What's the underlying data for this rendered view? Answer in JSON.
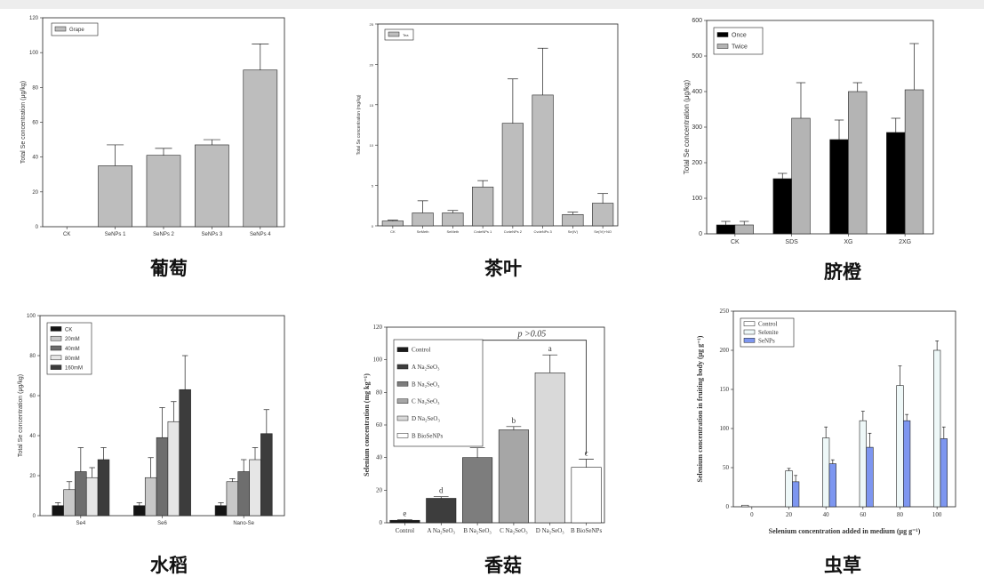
{
  "captions": [
    "葡萄",
    "茶叶",
    "脐橙",
    "水稻",
    "香菇",
    "虫草"
  ],
  "chart_data": [
    {
      "type": "bar",
      "caption": "葡萄",
      "ylabel": "Total Se concentration (μg/kg)",
      "ylim": [
        0,
        120
      ],
      "yticks": [
        "0",
        "20",
        "40",
        "60",
        "80",
        "100",
        "120"
      ],
      "categories": [
        "CK",
        "SeNPs 1",
        "SeNPs 2",
        "SeNPs 3",
        "SeNPs 4"
      ],
      "series": [
        {
          "name": "Grape",
          "color": "#bdbdbd",
          "values": [
            0,
            35,
            41,
            47,
            90
          ],
          "errors": [
            0,
            12,
            4,
            3,
            15
          ]
        }
      ],
      "legend": "top-left"
    },
    {
      "type": "bar",
      "caption": "茶叶",
      "ylabel": "Total Se concentration (mg/kg)",
      "ylim": [
        0,
        25
      ],
      "yticks": [
        "0",
        "5",
        "10",
        "15",
        "20",
        "25"
      ],
      "categories": [
        "CK",
        "SeMeth",
        "SeMeth",
        "CvdeNPs 1",
        "CvdeNPs 2",
        "CvdeNPs 3",
        "Se(IV)",
        "Se(IV)+NO"
      ],
      "series": [
        {
          "name": "Tea",
          "color": "#bdbdbd",
          "values": [
            0.6,
            1.6,
            1.6,
            4.8,
            12.7,
            16.2,
            1.4,
            2.8
          ],
          "errors": [
            0.1,
            1.5,
            0.3,
            0.8,
            5.5,
            5.8,
            0.3,
            1.2
          ]
        }
      ],
      "legend": "top-left"
    },
    {
      "type": "bar",
      "caption": "脐橙",
      "ylabel": "Total Se concentration (μg/kg)",
      "ylim": [
        0,
        600
      ],
      "yticks": [
        "0",
        "100",
        "200",
        "300",
        "400",
        "500",
        "600"
      ],
      "categories": [
        "CK",
        "SDS",
        "XG",
        "2XG"
      ],
      "series": [
        {
          "name": "Once",
          "color": "#000000",
          "values": [
            25,
            155,
            265,
            285
          ],
          "errors": [
            10,
            15,
            55,
            40
          ]
        },
        {
          "name": "Twice",
          "color": "#b4b4b4",
          "values": [
            25,
            325,
            400,
            405
          ],
          "errors": [
            10,
            100,
            25,
            130
          ]
        }
      ],
      "legend": "top-left"
    },
    {
      "type": "bar",
      "caption": "水稻",
      "ylabel": "Total Se concentration (μg/kg)",
      "ylim": [
        0,
        100
      ],
      "yticks": [
        "0",
        "20",
        "40",
        "60",
        "80",
        "100"
      ],
      "categories": [
        "Se4",
        "Se6",
        "Nano-Se"
      ],
      "series": [
        {
          "name": "CK",
          "color": "#141414",
          "values": [
            5,
            5,
            5
          ],
          "errors": [
            1.5,
            1.5,
            1.5
          ]
        },
        {
          "name": "20mM",
          "color": "#c8c8c8",
          "values": [
            13,
            19,
            17
          ],
          "errors": [
            4,
            10,
            1.5
          ]
        },
        {
          "name": "40mM",
          "color": "#6e6e6e",
          "values": [
            22,
            39,
            22
          ],
          "errors": [
            12,
            15,
            6
          ]
        },
        {
          "name": "80mM",
          "color": "#e6e6e6",
          "values": [
            19,
            47,
            28
          ],
          "errors": [
            5,
            10,
            6
          ]
        },
        {
          "name": "160mM",
          "color": "#3c3c3c",
          "values": [
            28,
            63,
            41
          ],
          "errors": [
            6,
            17,
            12
          ]
        }
      ],
      "legend": "top-left"
    },
    {
      "type": "bar",
      "caption": "香菇",
      "ylabel": "Selenium concentration (mg kg⁻¹)",
      "ylim": [
        0,
        120
      ],
      "yticks": [
        "0",
        "20",
        "40",
        "60",
        "80",
        "100",
        "120"
      ],
      "categories": [
        "Control",
        "A Na₂SeO₃",
        "B Na₂SeO₃",
        "C Na₂SeO₃",
        "D Na₂SeO₃",
        "B BioSeNPs"
      ],
      "series": [
        {
          "name": "",
          "values": [
            1.5,
            15,
            40,
            57,
            92,
            34
          ],
          "errors": [
            0.5,
            1,
            6,
            2,
            11,
            5
          ],
          "colors": [
            "#1a1a1a",
            "#3d3d3d",
            "#7d7d7d",
            "#a6a6a6",
            "#d9d9d9",
            "#ffffff"
          ]
        }
      ],
      "letters": [
        "e",
        "d",
        "c",
        "b",
        "a",
        "c"
      ],
      "legend_entries": [
        {
          "label": "Control",
          "color": "#1a1a1a"
        },
        {
          "label": "A  Na₂SeO₃",
          "color": "#3d3d3d"
        },
        {
          "label": "B  Na₂SeO₃",
          "color": "#7d7d7d"
        },
        {
          "label": "C  Na₂SeO₃",
          "color": "#a6a6a6"
        },
        {
          "label": "D  Na₂SeO₃",
          "color": "#d9d9d9"
        },
        {
          "label": "B  BioSeNPs",
          "color": "#ffffff"
        }
      ],
      "annotation": "p >0.05",
      "legend": "top-left"
    },
    {
      "type": "bar",
      "caption": "虫草",
      "xlabel": "Selenium concentration added in medium (μg g⁻¹)",
      "ylabel": "Selenium concentration in fruiting body (μg g⁻¹)",
      "ylim": [
        0,
        250
      ],
      "yticks": [
        "0",
        "50",
        "100",
        "150",
        "200",
        "250"
      ],
      "categories": [
        "0",
        "20",
        "40",
        "60",
        "80",
        "100"
      ],
      "series": [
        {
          "name": "Control",
          "color": "#ffffff",
          "values": [
            2,
            0,
            0,
            0,
            0,
            0
          ],
          "errors": [
            0,
            0,
            0,
            0,
            0,
            0
          ]
        },
        {
          "name": "Selenite",
          "color": "#eef8f8",
          "values": [
            0,
            46,
            88,
            110,
            155,
            200
          ],
          "errors": [
            0,
            3,
            14,
            12,
            25,
            12
          ]
        },
        {
          "name": "SeNPs",
          "color": "#7d96f0",
          "values": [
            0,
            32,
            55,
            76,
            110,
            87
          ],
          "errors": [
            0,
            8,
            5,
            18,
            8,
            15
          ]
        }
      ],
      "legend": "top-left"
    }
  ]
}
